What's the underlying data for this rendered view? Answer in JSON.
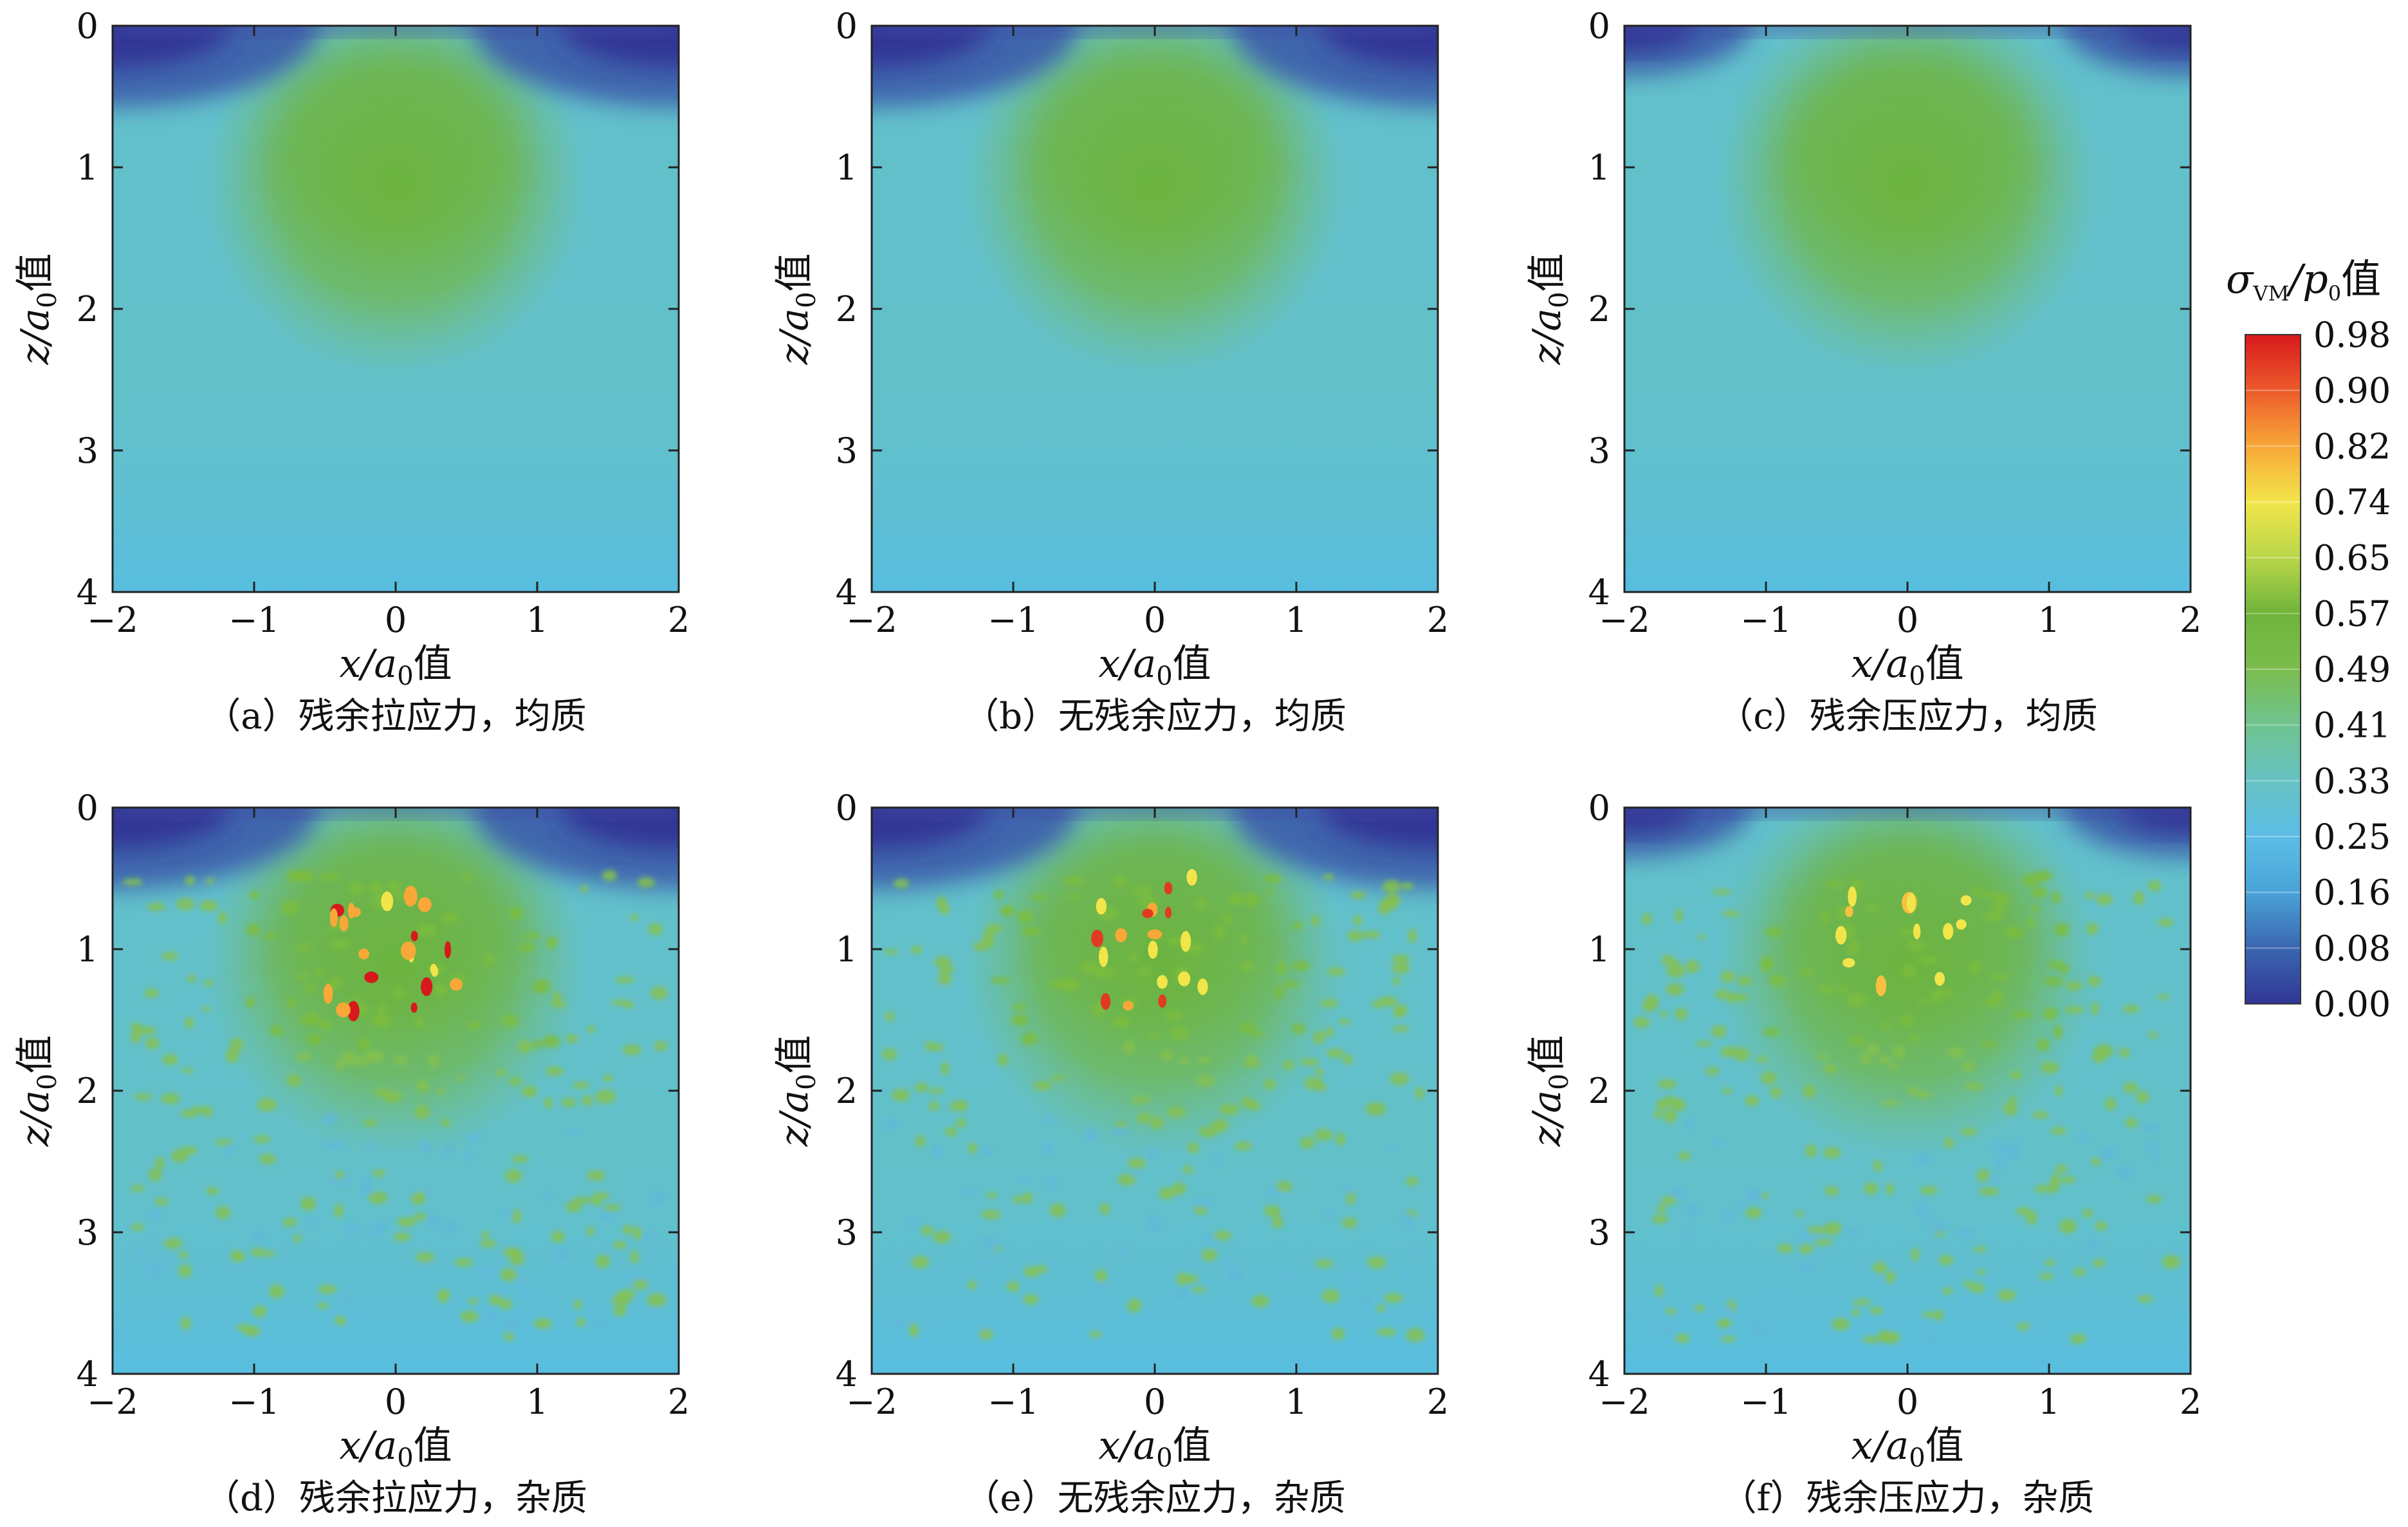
{
  "colors": {
    "colormap": [
      "#313695",
      "#3a66b0",
      "#4aa3d8",
      "#5cbde6",
      "#66c2c3",
      "#6fc38f",
      "#7bbd4e",
      "#6fb43a",
      "#b9d64a",
      "#f2e54a",
      "#f8a838",
      "#ec5a2b",
      "#d7191c"
    ]
  },
  "panels": [
    {
      "id": "a",
      "caption": "（a）残余拉应力，均质",
      "x_label": {
        "var": "x/a",
        "sub": "0",
        "suffix": "值"
      },
      "y_label": {
        "var": "z/a",
        "sub": "0",
        "suffix": "值"
      },
      "x_ticks": [
        "−2",
        "−1",
        "0",
        "1",
        "2"
      ],
      "y_ticks": [
        "0",
        "1",
        "2",
        "3",
        "4"
      ]
    },
    {
      "id": "b",
      "caption": "（b）无残余应力，均质",
      "x_label": {
        "var": "x/a",
        "sub": "0",
        "suffix": "值"
      },
      "y_label": {
        "var": "z/a",
        "sub": "0",
        "suffix": "值"
      },
      "x_ticks": [
        "−2",
        "−1",
        "0",
        "1",
        "2"
      ],
      "y_ticks": [
        "0",
        "1",
        "2",
        "3",
        "4"
      ]
    },
    {
      "id": "c",
      "caption": "（c）残余压应力，均质",
      "x_label": {
        "var": "x/a",
        "sub": "0",
        "suffix": "值"
      },
      "y_label": {
        "var": "z/a",
        "sub": "0",
        "suffix": "值"
      },
      "x_ticks": [
        "−2",
        "−1",
        "0",
        "1",
        "2"
      ],
      "y_ticks": [
        "0",
        "1",
        "2",
        "3",
        "4"
      ]
    },
    {
      "id": "d",
      "caption": "（d）残余拉应力，杂质",
      "x_label": {
        "var": "x/a",
        "sub": "0",
        "suffix": "值"
      },
      "y_label": {
        "var": "z/a",
        "sub": "0",
        "suffix": "值"
      },
      "x_ticks": [
        "−2",
        "−1",
        "0",
        "1",
        "2"
      ],
      "y_ticks": [
        "0",
        "1",
        "2",
        "3",
        "4"
      ]
    },
    {
      "id": "e",
      "caption": "（e）无残余应力，杂质",
      "x_label": {
        "var": "x/a",
        "sub": "0",
        "suffix": "值"
      },
      "y_label": {
        "var": "z/a",
        "sub": "0",
        "suffix": "值"
      },
      "x_ticks": [
        "−2",
        "−1",
        "0",
        "1",
        "2"
      ],
      "y_ticks": [
        "0",
        "1",
        "2",
        "3",
        "4"
      ]
    },
    {
      "id": "f",
      "caption": "（f）残余压应力，杂质",
      "x_label": {
        "var": "x/a",
        "sub": "0",
        "suffix": "值"
      },
      "y_label": {
        "var": "z/a",
        "sub": "0",
        "suffix": "值"
      },
      "x_ticks": [
        "−2",
        "−1",
        "0",
        "1",
        "2"
      ],
      "y_ticks": [
        "0",
        "1",
        "2",
        "3",
        "4"
      ]
    }
  ],
  "colorbar": {
    "title": {
      "sym": "σ",
      "sub": "VM",
      "mid": "/p",
      "sub2": "0",
      "suffix": "值"
    },
    "ticks": [
      "0.98",
      "0.90",
      "0.82",
      "0.74",
      "0.65",
      "0.57",
      "0.49",
      "0.41",
      "0.33",
      "0.25",
      "0.16",
      "0.08",
      "0.00"
    ]
  },
  "chart_data": [
    {
      "type": "heatmap",
      "panel": "a",
      "title": "（a）残余拉应力，均质",
      "xlabel": "x/a0值",
      "ylabel": "z/a0值",
      "xlim": [
        -2,
        2
      ],
      "ylim": [
        4,
        0
      ],
      "inclusions": false,
      "residual_stress": "tensile",
      "peak_value": 0.55
    },
    {
      "type": "heatmap",
      "panel": "b",
      "title": "（b）无残余应力，均质",
      "xlabel": "x/a0值",
      "ylabel": "z/a0值",
      "xlim": [
        -2,
        2
      ],
      "ylim": [
        4,
        0
      ],
      "inclusions": false,
      "residual_stress": "none",
      "peak_value": 0.5
    },
    {
      "type": "heatmap",
      "panel": "c",
      "title": "（c）残余压应力，均质",
      "xlabel": "x/a0值",
      "ylabel": "z/a0值",
      "xlim": [
        -2,
        2
      ],
      "ylim": [
        4,
        0
      ],
      "inclusions": false,
      "residual_stress": "compressive",
      "peak_value": 0.49
    },
    {
      "type": "heatmap",
      "panel": "d",
      "title": "（d）残余拉应力，杂质",
      "xlabel": "x/a0值",
      "ylabel": "z/a0值",
      "xlim": [
        -2,
        2
      ],
      "ylim": [
        4,
        0
      ],
      "inclusions": true,
      "residual_stress": "tensile",
      "peak_value": 0.98
    },
    {
      "type": "heatmap",
      "panel": "e",
      "title": "（e）无残余应力，杂质",
      "xlabel": "x/a0值",
      "ylabel": "z/a0值",
      "xlim": [
        -2,
        2
      ],
      "ylim": [
        4,
        0
      ],
      "inclusions": true,
      "residual_stress": "none",
      "peak_value": 0.9
    },
    {
      "type": "heatmap",
      "panel": "f",
      "title": "（f）残余压应力，杂质",
      "xlabel": "x/a0值",
      "ylabel": "z/a0值",
      "xlim": [
        -2,
        2
      ],
      "ylim": [
        4,
        0
      ],
      "inclusions": true,
      "residual_stress": "compressive",
      "peak_value": 0.8
    }
  ]
}
